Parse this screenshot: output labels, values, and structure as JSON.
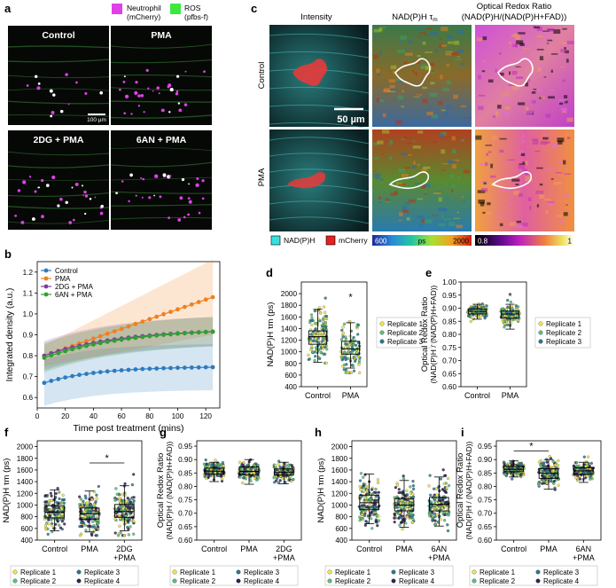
{
  "panel_letters": {
    "a": "a",
    "b": "b",
    "c": "c",
    "d": "d",
    "e": "e",
    "f": "f",
    "g": "g",
    "h": "h",
    "i": "i"
  },
  "colors": {
    "neutrophil": "#e040e8",
    "ros": "#3de83d",
    "control": "#2e7bbf",
    "pma": "#f08020",
    "dg": "#7a3f9a",
    "an": "#2ea02e",
    "rep1": "#f2e64a",
    "rep2": "#57c278",
    "rep3": "#2a788e",
    "rep4": "#3b1d55",
    "nadph": "#36e0e0",
    "mcherry": "#e82020"
  },
  "panel_a": {
    "legend": [
      {
        "name": "Neutrophil",
        "sub": "(mCherry)",
        "color_key": "neutrophil"
      },
      {
        "name": "ROS",
        "sub": "(pfbs-f)",
        "color_key": "ros"
      }
    ],
    "images": [
      "Control",
      "PMA",
      "2DG + PMA",
      "6AN + PMA"
    ],
    "scalebar": "100 µm"
  },
  "panel_c": {
    "columns": [
      "Intensity",
      "NAD(P)H τ",
      "Optical Redox Ratio"
    ],
    "column_tau_sub": "m",
    "column_redox_sub": "(NAD(P)H/(NAD(P)H+FAD))",
    "rows": [
      "Control",
      "PMA"
    ],
    "scalebar": "50 µm",
    "legend_nadph": "NAD(P)H",
    "legend_mcherry": "mCherry",
    "tau_min": "600",
    "tau_unit": "ps",
    "tau_max": "2000",
    "ratio_min": "0.8",
    "ratio_max": "1"
  },
  "replicate_labels": [
    "Replicate 1",
    "Replicate 2",
    "Replicate 3",
    "Replicate 4"
  ],
  "chart_data": [
    {
      "id": "b",
      "type": "line",
      "xlabel": "Time post treatment (mins)",
      "ylabel": "Integrated density (a.u.)",
      "xlim": [
        0,
        130
      ],
      "ylim": [
        0.55,
        1.25
      ],
      "xticks": [
        0,
        20,
        40,
        60,
        80,
        100,
        120
      ],
      "yticks": [
        0.6,
        0.7,
        0.8,
        0.9,
        1.0,
        1.1,
        1.2
      ],
      "x": [
        5,
        10,
        15,
        20,
        25,
        30,
        35,
        40,
        45,
        50,
        55,
        60,
        65,
        70,
        75,
        80,
        85,
        90,
        95,
        100,
        105,
        110,
        115,
        120,
        125
      ],
      "series": [
        {
          "name": "Control",
          "color_key": "control",
          "start": 0.67,
          "end": 0.745,
          "k": 3.2,
          "band": 0.11
        },
        {
          "name": "PMA",
          "color_key": "pma",
          "start": 0.8,
          "end": 1.08,
          "k": 0.0,
          "band_start": 0.05,
          "band_end": 0.18
        },
        {
          "name": "2DG + PMA",
          "color_key": "dg",
          "start": 0.8,
          "end": 0.915,
          "k": 2.2,
          "band": 0.07
        },
        {
          "name": "6AN + PMA",
          "color_key": "an",
          "start": 0.79,
          "end": 0.915,
          "k": 2.0,
          "band": 0.07
        }
      ]
    },
    {
      "id": "d",
      "type": "box",
      "ylabel": "NAD(P)H τm (ps)",
      "ylim": [
        400,
        2200
      ],
      "yticks": [
        400,
        600,
        800,
        1000,
        1200,
        1400,
        1600,
        1800,
        2000
      ],
      "categories": [
        "Control",
        "PMA"
      ],
      "boxes": [
        {
          "q1": 1130,
          "median": 1260,
          "q3": 1360,
          "lo": 820,
          "hi": 1730,
          "n": 140,
          "spread": 240,
          "min": 720,
          "max": 2130
        },
        {
          "q1": 960,
          "median": 1050,
          "q3": 1180,
          "lo": 720,
          "hi": 1500,
          "n": 110,
          "spread": 200,
          "min": 640,
          "max": 1960
        }
      ],
      "replicates": 3,
      "star": {
        "label": "*",
        "category": 1,
        "value": 1950
      }
    },
    {
      "id": "e",
      "type": "box",
      "ylabel": "Optical Redox Ratio",
      "ylabel_sub": "(NAD(P)H / (NAD(P)H+FAD))",
      "ylim": [
        0.6,
        1.0
      ],
      "yticks": [
        0.6,
        0.65,
        0.7,
        0.75,
        0.8,
        0.85,
        0.9,
        0.95,
        1.0
      ],
      "categories": [
        "Control",
        "PMA"
      ],
      "boxes": [
        {
          "q1": 0.878,
          "median": 0.888,
          "q3": 0.897,
          "lo": 0.858,
          "hi": 0.915,
          "n": 140,
          "spread": 0.012,
          "min": 0.83,
          "max": 0.93
        },
        {
          "q1": 0.862,
          "median": 0.878,
          "q3": 0.889,
          "lo": 0.82,
          "hi": 0.915,
          "n": 110,
          "spread": 0.02,
          "min": 0.775,
          "max": 0.93
        }
      ],
      "replicates": 3,
      "star": {
        "label": "*",
        "category": 1,
        "value": 0.948
      }
    },
    {
      "id": "f",
      "type": "box",
      "ylabel": "NAD(P)H τm (ps)",
      "ylim": [
        400,
        2100
      ],
      "yticks": [
        400,
        600,
        800,
        1000,
        1200,
        1400,
        1600,
        1800,
        2000
      ],
      "categories": [
        "Control",
        "PMA",
        "2DG\n+PMA"
      ],
      "boxes": [
        {
          "q1": 780,
          "median": 880,
          "q3": 990,
          "lo": 560,
          "hi": 1260,
          "n": 150,
          "spread": 170,
          "min": 500,
          "max": 1600
        },
        {
          "q1": 760,
          "median": 850,
          "q3": 950,
          "lo": 540,
          "hi": 1240,
          "n": 150,
          "spread": 170,
          "min": 480,
          "max": 1620
        },
        {
          "q1": 790,
          "median": 890,
          "q3": 1010,
          "lo": 560,
          "hi": 1330,
          "n": 150,
          "spread": 190,
          "min": 480,
          "max": 1700
        }
      ],
      "replicates": 4,
      "bracket": {
        "label": "*",
        "from": 1,
        "to": 2,
        "value": 1720
      }
    },
    {
      "id": "g",
      "type": "box",
      "ylabel": "Optical Redox Ratio",
      "ylabel_sub": "(NAD(P)H / (NAD(P)H+FAD))",
      "ylim": [
        0.6,
        0.97
      ],
      "yticks": [
        0.6,
        0.65,
        0.7,
        0.75,
        0.8,
        0.85,
        0.9,
        0.95
      ],
      "categories": [
        "Control",
        "PMA",
        "2DG\n+PMA"
      ],
      "boxes": [
        {
          "q1": 0.845,
          "median": 0.857,
          "q3": 0.868,
          "lo": 0.818,
          "hi": 0.89,
          "n": 150,
          "spread": 0.014,
          "min": 0.8,
          "max": 0.905
        },
        {
          "q1": 0.843,
          "median": 0.856,
          "q3": 0.872,
          "lo": 0.808,
          "hi": 0.9,
          "n": 150,
          "spread": 0.016,
          "min": 0.79,
          "max": 0.915
        },
        {
          "q1": 0.842,
          "median": 0.852,
          "q3": 0.865,
          "lo": 0.81,
          "hi": 0.89,
          "n": 150,
          "spread": 0.015,
          "min": 0.8,
          "max": 0.905
        }
      ],
      "replicates": 4
    },
    {
      "id": "h",
      "type": "box",
      "ylabel": "NAD(P)H τm (ps)",
      "ylim": [
        400,
        2100
      ],
      "yticks": [
        400,
        600,
        800,
        1000,
        1200,
        1400,
        1600,
        1800,
        2000
      ],
      "categories": [
        "Control",
        "PMA",
        "6AN\n+PMA"
      ],
      "boxes": [
        {
          "q1": 920,
          "median": 1040,
          "q3": 1170,
          "lo": 680,
          "hi": 1530,
          "n": 150,
          "spread": 200,
          "min": 600,
          "max": 1660
        },
        {
          "q1": 900,
          "median": 1000,
          "q3": 1110,
          "lo": 620,
          "hi": 1420,
          "n": 150,
          "spread": 190,
          "min": 560,
          "max": 1650
        },
        {
          "q1": 900,
          "median": 1010,
          "q3": 1130,
          "lo": 640,
          "hi": 1480,
          "n": 150,
          "spread": 200,
          "min": 560,
          "max": 1680
        }
      ],
      "replicates": 4
    },
    {
      "id": "i",
      "type": "box",
      "ylabel": "Optical Redox Ratio",
      "ylabel_sub": "(NAD(P)H / (NAD(P)H+FAD))",
      "ylim": [
        0.6,
        0.97
      ],
      "yticks": [
        0.6,
        0.65,
        0.7,
        0.75,
        0.8,
        0.85,
        0.9,
        0.95
      ],
      "categories": [
        "Control",
        "PMA",
        "6AN\n+PMA"
      ],
      "boxes": [
        {
          "q1": 0.855,
          "median": 0.864,
          "q3": 0.875,
          "lo": 0.835,
          "hi": 0.895,
          "n": 150,
          "spread": 0.013,
          "min": 0.815,
          "max": 0.91
        },
        {
          "q1": 0.83,
          "median": 0.85,
          "q3": 0.866,
          "lo": 0.79,
          "hi": 0.9,
          "n": 150,
          "spread": 0.022,
          "min": 0.735,
          "max": 0.915
        },
        {
          "q1": 0.845,
          "median": 0.858,
          "q3": 0.869,
          "lo": 0.815,
          "hi": 0.89,
          "n": 150,
          "spread": 0.016,
          "min": 0.77,
          "max": 0.91
        }
      ],
      "replicates": 4,
      "bracket": {
        "label": "*",
        "from": 0,
        "to": 1,
        "value": 0.932
      }
    }
  ]
}
